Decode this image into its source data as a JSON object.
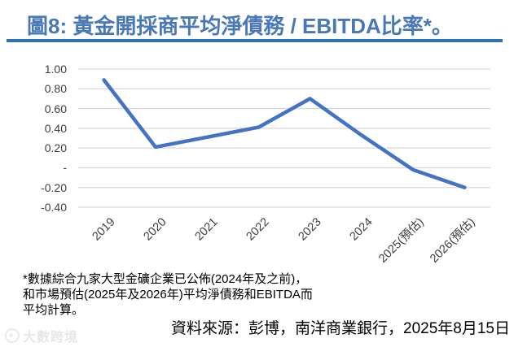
{
  "header": {
    "title": "圖8: 黃金開採商平均淨債務 / EBITDA比率*。"
  },
  "chart_data": {
    "type": "line",
    "categories": [
      "2019",
      "2020",
      "2021",
      "2022",
      "2023",
      "2024",
      "2025(預估)",
      "2026(預估)"
    ],
    "values": [
      0.89,
      0.21,
      0.31,
      0.41,
      0.7,
      0.33,
      -0.02,
      -0.2
    ],
    "y_tick_labels": [
      "1.00",
      "0.80",
      "0.60",
      "0.40",
      "0.20",
      "-",
      "-0.20",
      "-0.40"
    ],
    "ylim": [
      -0.4,
      1.0
    ],
    "y_step": 0.2,
    "grid": "horizontal",
    "legend": "none",
    "title": "",
    "xlabel": "",
    "ylabel": ""
  },
  "colors": {
    "title_text": "#4878B6",
    "title_rule": "#2E74B5",
    "line": "#4472C4",
    "grid": "#D9D9D9",
    "axis_text": "#3F3F3F"
  },
  "footnote": {
    "lines": [
      "*數據綜合九家大型金礦企業已公佈(2024年及之前)，",
      "和市場預估(2025年及2026年)平均淨債務和EBITDA而",
      "平均計算。"
    ]
  },
  "source": {
    "text": "資料來源：彭博，南洋商業銀行，2025年8月15日"
  },
  "watermark": {
    "text": "大數跨境"
  }
}
